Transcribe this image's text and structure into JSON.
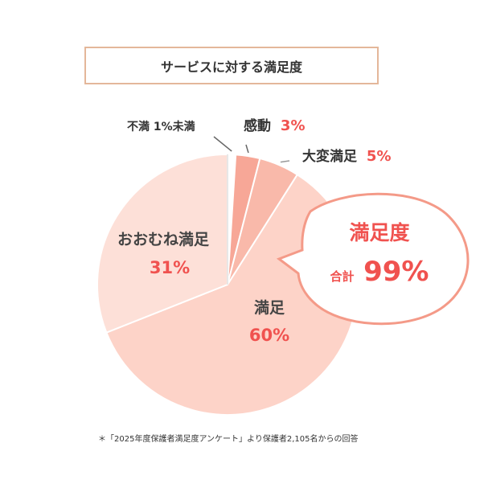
{
  "chart_data": {
    "type": "pie",
    "title": "サービスに対する満足度",
    "slices": [
      {
        "label": "不満 1%未満",
        "value": 1,
        "value_text": "",
        "color": "#ffffff"
      },
      {
        "label": "感動",
        "value": 3,
        "value_text": "3%",
        "color": "#f7a797"
      },
      {
        "label": "大変満足",
        "value": 5,
        "value_text": "5%",
        "color": "#f9b9aa"
      },
      {
        "label": "満足",
        "value": 60,
        "value_text": "60%",
        "color": "#fdd3c8"
      },
      {
        "label": "おおむね満足",
        "value": 31,
        "value_text": "31%",
        "color": "#fde0d8"
      }
    ],
    "callout": {
      "title": "満足度",
      "prefix": "合計",
      "value": "99%"
    },
    "accent_color": "#f0524f",
    "footnote": "＊「2025年度保護者満足度アンケート」より保護者2,105名からの回答"
  }
}
